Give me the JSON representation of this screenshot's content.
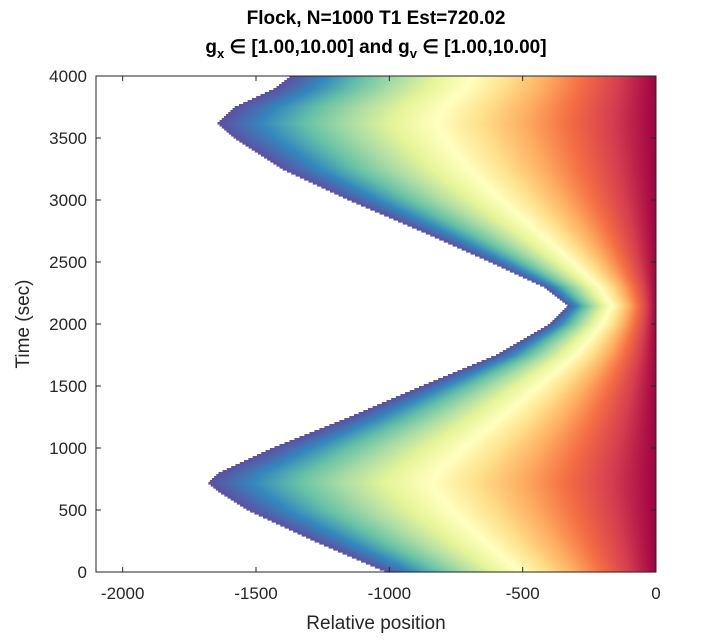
{
  "chart_data": {
    "type": "heatmap",
    "title": {
      "line1": "Flock, N=1000 T1 Est=720.02",
      "line2_parts": [
        {
          "text": "g",
          "sub": false
        },
        {
          "text": "x",
          "sub": true
        },
        {
          "text": " ∈ [1.00,10.00] and g",
          "sub": false
        },
        {
          "text": "v",
          "sub": true
        },
        {
          "text": " ∈ [1.00,10.00]",
          "sub": false
        }
      ]
    },
    "xlabel": "Relative position",
    "ylabel": "Time (sec)",
    "xlim": [
      -2100,
      0
    ],
    "ylim": [
      0,
      4000
    ],
    "xticks": [
      -2000,
      -1500,
      -1000,
      -500,
      0
    ],
    "xtick_labels": [
      "-2000",
      "-1500",
      "-1000",
      "-500",
      "0"
    ],
    "yticks": [
      0,
      500,
      1000,
      1500,
      2000,
      2500,
      3000,
      3500,
      4000
    ],
    "ytick_labels": [
      "0",
      "500",
      "1000",
      "1500",
      "2000",
      "2500",
      "3000",
      "3500",
      "4000"
    ],
    "colormap": "spectral",
    "colormap_stops": [
      "#5e4fa2",
      "#3288bd",
      "#66c2a5",
      "#abdda4",
      "#e6f598",
      "#ffffbf",
      "#fee08b",
      "#fdae61",
      "#f46d43",
      "#d53e4f",
      "#9e0142"
    ],
    "flock_boundary": {
      "time": [
        0,
        250,
        500,
        650,
        720,
        800,
        1000,
        1250,
        1500,
        1750,
        2000,
        2150,
        2300,
        2500,
        2750,
        3000,
        3250,
        3500,
        3620,
        3750,
        3900,
        4000
      ],
      "left_edge": [
        -1010,
        -1280,
        -1530,
        -1640,
        -1680,
        -1640,
        -1440,
        -1150,
        -880,
        -600,
        -400,
        -330,
        -420,
        -620,
        -880,
        -1150,
        -1400,
        -1580,
        -1645,
        -1580,
        -1430,
        -1370
      ]
    },
    "background": "#ffffff"
  }
}
